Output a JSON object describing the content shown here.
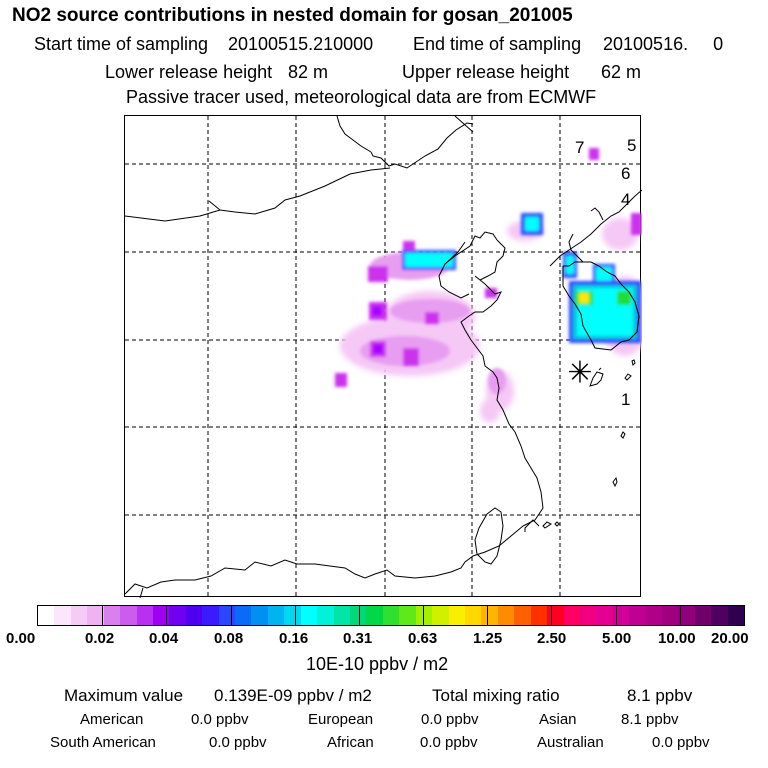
{
  "header": {
    "title": "NO2 source contributions in nested domain for gosan_201005",
    "start_label": "Start time of sampling",
    "start_value": "20100515.210000",
    "end_label": "End time of sampling",
    "end_value": "20100516.     0",
    "lower_label": "Lower release height",
    "lower_value": "82 m",
    "upper_label": "Upper release height",
    "upper_value": "62 m",
    "note": "Passive tracer used, meteorological data are from ECMWF"
  },
  "map": {
    "markers": [
      "7",
      "5",
      "6",
      "4",
      "1"
    ],
    "receptor_symbol": "✳",
    "plume_colors": {
      "light": "#f5c8f5",
      "pink": "#e89ef0",
      "violet": "#cc33ee",
      "purple": "#a800ff",
      "blue": "#2c46ff",
      "cyan": "#00ffff",
      "teal": "#00c8d8",
      "green": "#22dd33",
      "yellow": "#ffe800"
    }
  },
  "colorbar": {
    "colors": [
      "#ffffff",
      "#fbe6fb",
      "#f5ccf5",
      "#eeb3f0",
      "#d880ee",
      "#cc5cee",
      "#b830f0",
      "#a000f0",
      "#7000f0",
      "#5000f0",
      "#3c1aff",
      "#2c46ff",
      "#0a6cf6",
      "#0090f0",
      "#00b4f0",
      "#00d8f0",
      "#00ffff",
      "#00f2d8",
      "#00e4a8",
      "#00d878",
      "#00d848",
      "#30e030",
      "#60e818",
      "#a0f000",
      "#d0f000",
      "#f8f000",
      "#ffd800",
      "#ffb400",
      "#ff8c00",
      "#ff6000",
      "#ff3000",
      "#ff0020",
      "#ff0066",
      "#f00080",
      "#e40090",
      "#d00098",
      "#c00090",
      "#b00088",
      "#a00080",
      "#900078",
      "#70006a",
      "#500060",
      "#300050"
    ],
    "tick_labels": [
      "0.00",
      "0.02",
      "0.04",
      "0.08",
      "0.16",
      "0.31",
      "0.63",
      "1.25",
      "2.50",
      "5.00",
      "10.00",
      "20.00"
    ],
    "unit": "10E-10 ppbv / m2"
  },
  "stats": {
    "max_label": "Maximum value",
    "max_value": "0.139E-09 ppbv / m2",
    "total_label": "Total mixing ratio",
    "total_value": "8.1 ppbv",
    "american_label": "American",
    "american_value": "0.0 ppbv",
    "european_label": "European",
    "european_value": "0.0 ppbv",
    "asian_label": "Asian",
    "asian_value": "8.1 ppbv",
    "south_american_label": "South American",
    "south_american_value": "0.0 ppbv",
    "african_label": "African",
    "african_value": "0.0 ppbv",
    "australian_label": "Australian",
    "australian_value": "0.0 ppbv"
  }
}
